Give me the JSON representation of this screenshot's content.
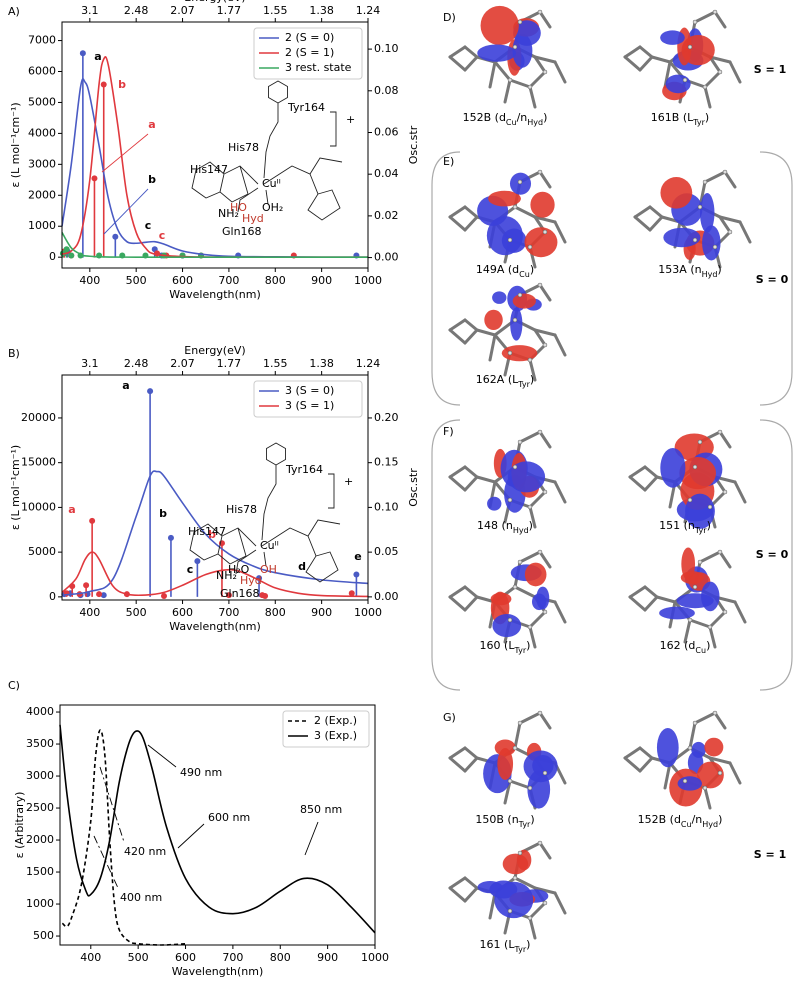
{
  "chart_data": [
    {
      "type": "line",
      "label": "A)",
      "xlabel": "Wavelength(nm)",
      "x2label": "Energy(eV)",
      "ylabel": "ε (L mol⁻¹cm⁻¹)",
      "y2label": "Osc.str",
      "xlim": [
        340,
        1000
      ],
      "xticks": [
        400,
        500,
        600,
        700,
        800,
        900,
        1000
      ],
      "x2ticks": [
        {
          "value": 400,
          "label": "3.1"
        },
        {
          "value": 500,
          "label": "2.48"
        },
        {
          "value": 600,
          "label": "2.07"
        },
        {
          "value": 700,
          "label": "1.77"
        },
        {
          "value": 800,
          "label": "1.55"
        },
        {
          "value": 900,
          "label": "1.38"
        },
        {
          "value": 1000,
          "label": "1.24"
        }
      ],
      "ylim": [
        -350,
        7600
      ],
      "yticks": [
        0,
        1000,
        2000,
        3000,
        4000,
        5000,
        6000,
        7000
      ],
      "y2lim": [
        -0.005,
        0.113
      ],
      "y2ticks": [
        {
          "value": 0,
          "label": "0.00"
        },
        {
          "value": 0.02,
          "label": "0.02"
        },
        {
          "value": 0.04,
          "label": "0.04"
        },
        {
          "value": 0.06,
          "label": "0.06"
        },
        {
          "value": 0.08,
          "label": "0.08"
        },
        {
          "value": 0.1,
          "label": "0.10"
        }
      ],
      "legend": "upper right",
      "series": [
        {
          "name": "2 (S = 0)",
          "color": "#4a5bc4",
          "x": [
            340,
            360,
            380,
            390,
            400,
            420,
            440,
            460,
            480,
            500,
            520,
            540,
            560,
            600,
            650,
            700,
            800,
            900,
            1000
          ],
          "values": [
            1000,
            3000,
            5500,
            5650,
            5200,
            3600,
            1900,
            900,
            500,
            450,
            480,
            500,
            420,
            200,
            80,
            30,
            10,
            0,
            0
          ]
        },
        {
          "name": "2 (S = 1)",
          "color": "#e0393e",
          "x": [
            340,
            360,
            380,
            400,
            420,
            430,
            440,
            460,
            480,
            500,
            520,
            540,
            600,
            700,
            1000
          ],
          "values": [
            100,
            200,
            700,
            2500,
            5600,
            6400,
            6200,
            4300,
            2000,
            800,
            300,
            100,
            20,
            0,
            0
          ]
        },
        {
          "name": "3 rest. state",
          "color": "#3aa860",
          "x": [
            340,
            360,
            380,
            400,
            500,
            1000
          ],
          "values": [
            800,
            300,
            100,
            30,
            0,
            0
          ]
        }
      ],
      "sticks": [
        {
          "color": "#4a5bc4",
          "axis": "y2",
          "x": [
            345,
            352,
            385,
            455,
            540,
            555,
            600,
            720,
            975
          ],
          "values": [
            0.002,
            0.003,
            0.098,
            0.01,
            0.004,
            0.001,
            0.001,
            0.001,
            0.001
          ]
        },
        {
          "color": "#e0393e",
          "axis": "y2",
          "x": [
            345,
            360,
            410,
            430,
            545,
            565,
            640,
            840
          ],
          "values": [
            0.003,
            0.001,
            0.038,
            0.083,
            0.002,
            0.001,
            0.001,
            0.001
          ]
        },
        {
          "color": "#3aa860",
          "axis": "y2",
          "x": [
            342,
            350,
            360,
            380,
            420,
            470,
            520,
            560,
            600,
            640
          ],
          "values": [
            0.002,
            0.004,
            0.001,
            0.001,
            0.001,
            0.001,
            0.001,
            0.001,
            0.001,
            0.001
          ]
        }
      ],
      "annotations": [
        {
          "text": "a",
          "color": "#000000"
        },
        {
          "text": "b",
          "color": "#e0393e"
        },
        {
          "text": "a",
          "color": "#e0393e"
        },
        {
          "text": "b",
          "color": "#000000"
        },
        {
          "text": "c",
          "color": "#000000"
        },
        {
          "text": "c",
          "color": "#e0393e"
        }
      ],
      "inset": [
        {
          "text": "Tyr164",
          "color": "#000000"
        },
        {
          "text": "His78",
          "color": "#000000"
        },
        {
          "text": "His147",
          "color": "#000000"
        },
        {
          "text": "Gln168",
          "color": "#000000"
        },
        {
          "text": "Cuᴵᴵ",
          "color": "#000000"
        },
        {
          "text": "HO",
          "color": "#c0392b"
        },
        {
          "text": "OH₂",
          "color": "#000000"
        },
        {
          "text": "Hyd",
          "color": "#c0392b"
        },
        {
          "text": "NH₂",
          "color": "#000000"
        },
        {
          "text": "+",
          "color": "#000000"
        }
      ]
    },
    {
      "type": "line",
      "label": "B)",
      "xlabel": "Wavelength(nm)",
      "x2label": "Energy(eV)",
      "ylabel": "ε (L mol⁻¹cm⁻¹)",
      "y2label": "Osc.str",
      "xlim": [
        340,
        1000
      ],
      "xticks": [
        400,
        500,
        600,
        700,
        800,
        900,
        1000
      ],
      "x2ticks": [
        {
          "value": 400,
          "label": "3.1"
        },
        {
          "value": 500,
          "label": "2.48"
        },
        {
          "value": 600,
          "label": "2.07"
        },
        {
          "value": 700,
          "label": "1.77"
        },
        {
          "value": 800,
          "label": "1.55"
        },
        {
          "value": 900,
          "label": "1.38"
        },
        {
          "value": 1000,
          "label": "1.24"
        }
      ],
      "ylim": [
        -350,
        24800
      ],
      "yticks": [
        0,
        5000,
        10000,
        15000,
        20000
      ],
      "y2lim": [
        -0.0035,
        0.248
      ],
      "y2ticks": [
        {
          "value": 0,
          "label": "0.00"
        },
        {
          "value": 0.05,
          "label": "0.05"
        },
        {
          "value": 0.1,
          "label": "0.10"
        },
        {
          "value": 0.15,
          "label": "0.15"
        },
        {
          "value": 0.2,
          "label": "0.20"
        }
      ],
      "legend": "upper right",
      "series": [
        {
          "name": "3 (S = 0)",
          "color": "#4a5bc4",
          "x": [
            340,
            400,
            450,
            500,
            530,
            545,
            560,
            600,
            650,
            700,
            750,
            800,
            900,
            1000
          ],
          "values": [
            200,
            600,
            2000,
            9000,
            13500,
            14000,
            13500,
            10500,
            7000,
            4800,
            3500,
            2700,
            1900,
            1500
          ]
        },
        {
          "name": "3 (S = 1)",
          "color": "#e0393e",
          "x": [
            340,
            370,
            390,
            405,
            420,
            450,
            480,
            520,
            560,
            600,
            650,
            690,
            720,
            760,
            800,
            850,
            900,
            1000
          ],
          "values": [
            500,
            2000,
            4200,
            5000,
            4200,
            1200,
            300,
            200,
            500,
            1300,
            2500,
            3000,
            2900,
            2000,
            1000,
            400,
            150,
            50
          ]
        }
      ],
      "sticks": [
        {
          "color": "#4a5bc4",
          "axis": "y2",
          "x": [
            345,
            358,
            380,
            395,
            430,
            530,
            575,
            632,
            765,
            975
          ],
          "values": [
            0.003,
            0.004,
            0.002,
            0.003,
            0.002,
            0.23,
            0.066,
            0.04,
            0.021,
            0.025
          ]
        },
        {
          "color": "#e0393e",
          "axis": "y2",
          "x": [
            350,
            362,
            378,
            392,
            405,
            420,
            480,
            560,
            685,
            700,
            772,
            778,
            965
          ],
          "values": [
            0.004,
            0.012,
            0.003,
            0.013,
            0.085,
            0.003,
            0.003,
            0.001,
            0.06,
            0.002,
            0.002,
            0.001,
            0.004
          ]
        }
      ],
      "annotations": [
        {
          "text": "a",
          "color": "#000000"
        },
        {
          "text": "a",
          "color": "#e0393e"
        },
        {
          "text": "b",
          "color": "#000000"
        },
        {
          "text": "b",
          "color": "#e0393e"
        },
        {
          "text": "c",
          "color": "#000000"
        },
        {
          "text": "d",
          "color": "#000000"
        },
        {
          "text": "e",
          "color": "#000000"
        }
      ],
      "inset": [
        {
          "text": "Tyr164",
          "color": "#000000"
        },
        {
          "text": "His78",
          "color": "#000000"
        },
        {
          "text": "His147",
          "color": "#000000"
        },
        {
          "text": "Gln168",
          "color": "#000000"
        },
        {
          "text": "Cuᴵᴵ",
          "color": "#000000"
        },
        {
          "text": "H₂O",
          "color": "#000000"
        },
        {
          "text": "OH",
          "color": "#c0392b"
        },
        {
          "text": "Hyd",
          "color": "#c0392b"
        },
        {
          "text": "NH₂",
          "color": "#000000"
        },
        {
          "text": "+",
          "color": "#000000"
        }
      ]
    },
    {
      "type": "line",
      "label": "C)",
      "xlabel": "Wavelength(nm)",
      "ylabel": "ε (Arbitrary)",
      "xlim": [
        335,
        1000
      ],
      "xticks": [
        400,
        500,
        600,
        700,
        800,
        900,
        1000
      ],
      "ylim": [
        360,
        4110
      ],
      "yticks": [
        500,
        1000,
        1500,
        2000,
        2500,
        3000,
        3500,
        4000
      ],
      "legend": "upper right",
      "series": [
        {
          "name": "2 (Exp.)",
          "color": "#000000",
          "linestyle": "dashed",
          "x": [
            340,
            350,
            360,
            380,
            400,
            410,
            420,
            430,
            440,
            450,
            460,
            480,
            500,
            550,
            600
          ],
          "values": [
            700,
            650,
            800,
            1300,
            2300,
            3300,
            3720,
            3300,
            2000,
            1000,
            600,
            420,
            380,
            360,
            380
          ]
        },
        {
          "name": "3 (Exp.)",
          "color": "#000000",
          "linestyle": "solid",
          "x": [
            335,
            350,
            370,
            390,
            400,
            420,
            440,
            460,
            480,
            495,
            510,
            530,
            560,
            600,
            650,
            700,
            750,
            800,
            850,
            900,
            950,
            1000
          ],
          "values": [
            3800,
            2700,
            1700,
            1200,
            1150,
            1400,
            2000,
            2900,
            3500,
            3700,
            3600,
            3100,
            2200,
            1400,
            950,
            850,
            950,
            1200,
            1400,
            1300,
            950,
            550
          ]
        }
      ],
      "annotations": [
        {
          "text": "490 nm",
          "color": "#000000"
        },
        {
          "text": "600 nm",
          "color": "#000000"
        },
        {
          "text": "850 nm",
          "color": "#000000"
        },
        {
          "text": "420 nm",
          "color": "#000000"
        },
        {
          "text": "400 nm",
          "color": "#000000"
        }
      ]
    }
  ],
  "panels": [
    {
      "label": "D)",
      "spin": "S = 1",
      "orbitals": [
        [
          "152B (d",
          "Cu",
          "/n",
          "Hyd",
          ")"
        ],
        [
          "161B (L",
          "Tyr",
          ")"
        ]
      ]
    },
    {
      "label": "E)",
      "spin": "S = 0",
      "orbitals": [
        [
          "149A (d",
          "Cu",
          ")"
        ],
        [
          "153A (n",
          "Hyd",
          ")"
        ],
        [
          "162A (L",
          "Tyr",
          ")"
        ]
      ]
    },
    {
      "label": "F)",
      "spin": "S = 0",
      "orbitals": [
        [
          "148 (n",
          "Hyd",
          ")"
        ],
        [
          "151 (n",
          "Tyr",
          ")"
        ],
        [
          "160 (L",
          "Tyr",
          ")"
        ],
        [
          "162 (d",
          "Cu",
          ")"
        ]
      ]
    },
    {
      "label": "G)",
      "spin": "S = 1",
      "orbitals": [
        [
          "150B (n",
          "Tyr",
          ")"
        ],
        [
          "152B (d",
          "Cu",
          "/n",
          "Hyd",
          ")"
        ],
        [
          "161 (L",
          "Tyr",
          ")"
        ]
      ]
    }
  ]
}
